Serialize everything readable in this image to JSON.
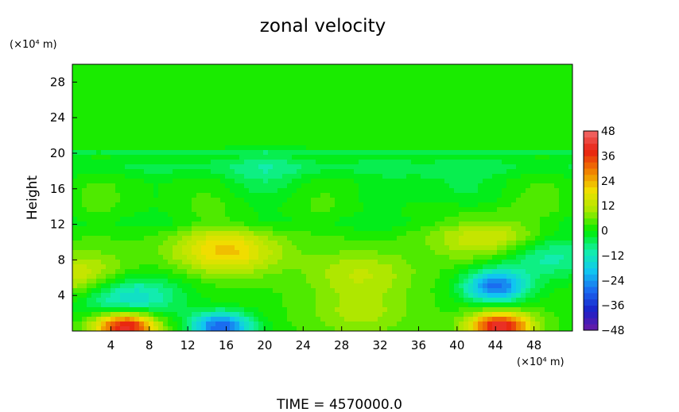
{
  "chart_data": {
    "type": "heatmap",
    "title": "zonal velocity",
    "ylabel": "Height",
    "y_unit": "(×10⁴ m)",
    "x_unit": "(×10⁴ m)",
    "xlim": [
      0,
      52
    ],
    "ylim": [
      0,
      30
    ],
    "x_ticks": [
      "4",
      "8",
      "12",
      "16",
      "20",
      "24",
      "28",
      "32",
      "36",
      "40",
      "44",
      "48"
    ],
    "y_ticks": [
      "4",
      "8",
      "12",
      "16",
      "20",
      "24",
      "28"
    ],
    "colorbar": {
      "min": -48,
      "max": 48,
      "levels": 32,
      "tick_labels": [
        "48",
        "36",
        "24",
        "12",
        "0",
        "−12",
        "−24",
        "−36",
        "−48"
      ],
      "stops": [
        "#6a1aa6",
        "#1a20c8",
        "#1a6af0",
        "#10c8f0",
        "#12f0a8",
        "#00ec00",
        "#a8e800",
        "#f0e000",
        "#f08000",
        "#e82010",
        "#f06a6a"
      ]
    },
    "background_value": 2,
    "features": [
      {
        "x": 5.5,
        "y": 0.5,
        "value": 42
      },
      {
        "x": 44.5,
        "y": 0.5,
        "value": 40
      },
      {
        "x": 15.5,
        "y": 0.5,
        "value": -32
      },
      {
        "x": 44,
        "y": 5,
        "value": -30
      },
      {
        "x": 5.5,
        "y": 4,
        "value": -20
      },
      {
        "x": 16,
        "y": 9,
        "value": 20
      },
      {
        "x": 30,
        "y": 6.5,
        "value": 10
      },
      {
        "x": 49,
        "y": 8.5,
        "value": -14
      },
      {
        "x": 43.5,
        "y": 10.5,
        "value": 16
      },
      {
        "x": 1,
        "y": 6,
        "value": 16
      },
      {
        "x": 20,
        "y": 17.5,
        "value": -6
      },
      {
        "x": 38,
        "y": 16,
        "value": -6
      },
      {
        "x": 30,
        "y": 2,
        "value": 8
      }
    ],
    "time_label": "TIME  =  4570000.0"
  }
}
